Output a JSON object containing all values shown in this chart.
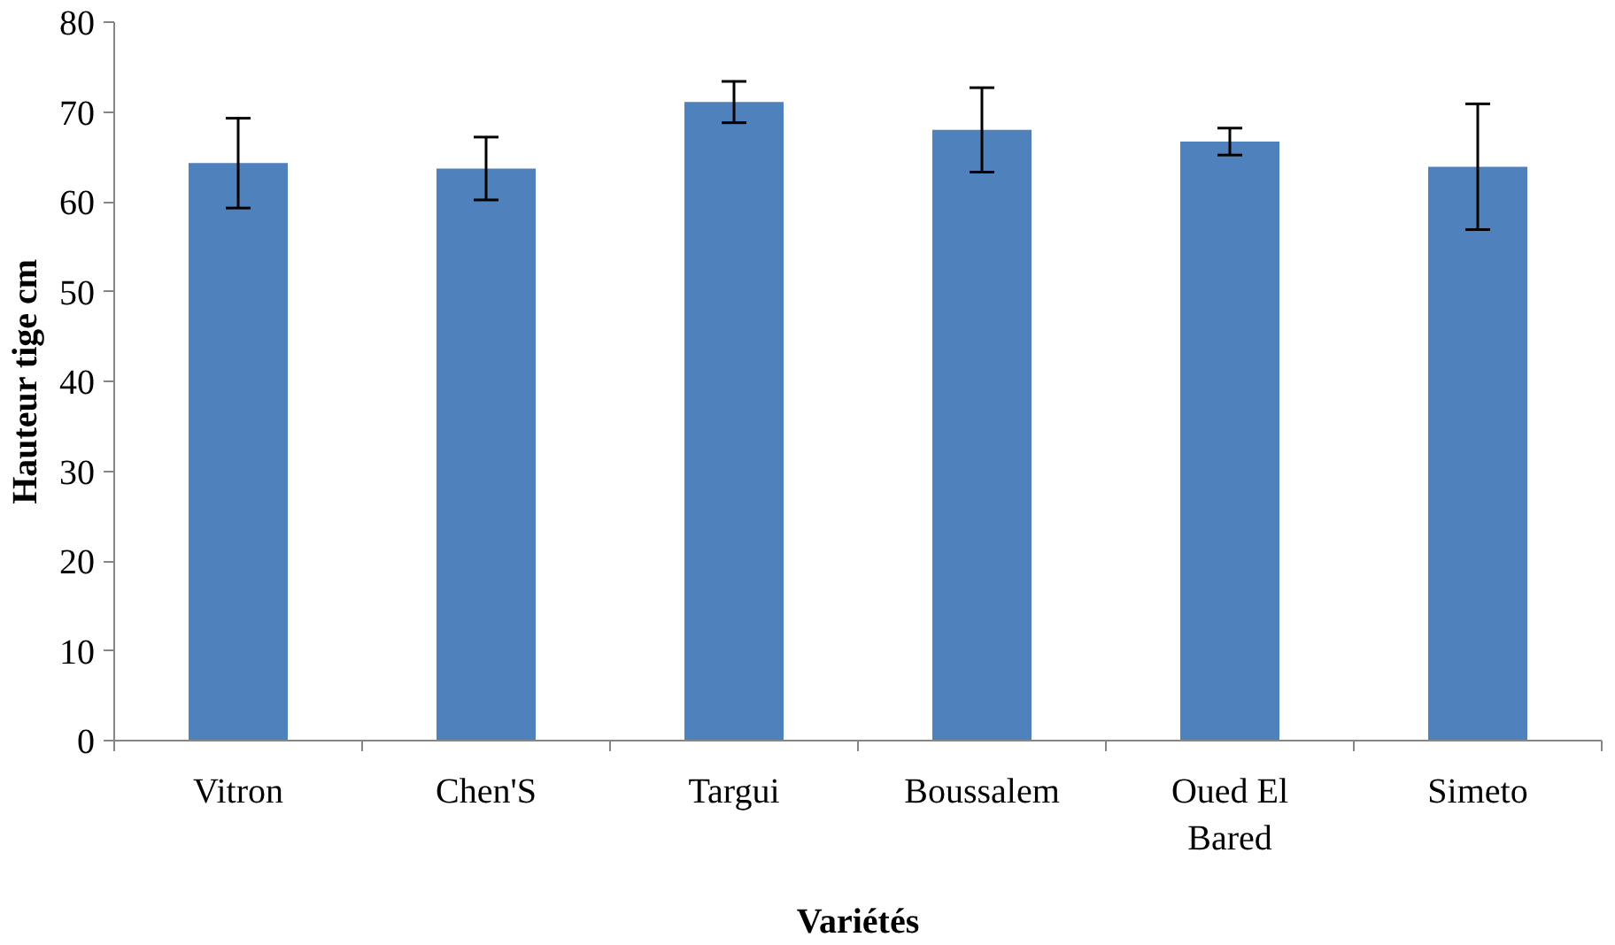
{
  "chart_data": {
    "type": "bar",
    "xlabel": "Variétés",
    "ylabel": "Hauteur tige cm",
    "categories": [
      "Vitron",
      "Chen'S",
      "Targui",
      "Boussalem",
      "Oued El Bared",
      "Simeto"
    ],
    "values": [
      64.3,
      63.7,
      71.1,
      68.0,
      66.7,
      63.9
    ],
    "errors": [
      5.0,
      3.5,
      2.3,
      4.7,
      1.5,
      7.0
    ],
    "color": "#4f81bd",
    "ylim": [
      0,
      80
    ],
    "yticks": [
      0,
      10,
      20,
      30,
      40,
      50,
      60,
      70,
      80
    ],
    "grid": false
  }
}
